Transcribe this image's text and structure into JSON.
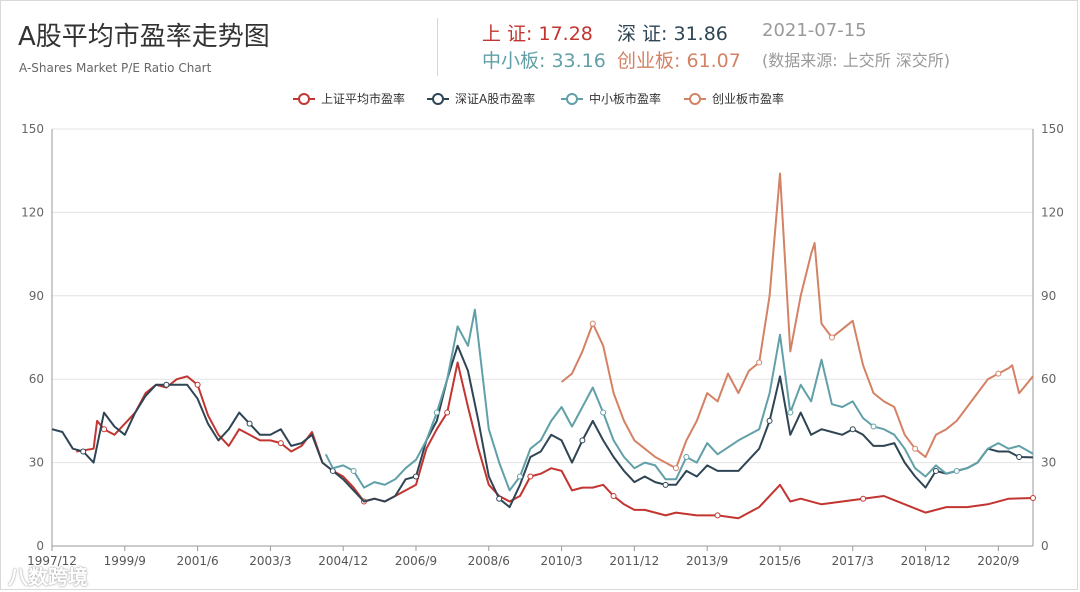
{
  "header": {
    "title": "A股平均市盈率走势图",
    "subtitle": "A-Shares Market P/E Ratio Chart",
    "stats": [
      {
        "label": "上 证",
        "value": "17.28",
        "color": "#c23531"
      },
      {
        "label": "深 证",
        "value": "31.86",
        "color": "#2f4554"
      },
      {
        "label": "中小板",
        "value": "33.16",
        "color": "#61a0a8"
      },
      {
        "label": "创业板",
        "value": "61.07",
        "color": "#d48265"
      }
    ],
    "date": "2021-07-15",
    "source": "(数据来源: 上交所 深交所)"
  },
  "watermark": "八数跨境",
  "chart_data": {
    "type": "line",
    "x_ticks": [
      "1997/12",
      "1999/9",
      "2001/6",
      "2003/3",
      "2004/12",
      "2006/9",
      "2008/6",
      "2010/3",
      "2011/12",
      "2013/9",
      "2015/6",
      "2017/3",
      "2018/12",
      "2020/9"
    ],
    "xlim": [
      "1997-12",
      "2021-07"
    ],
    "ylim": [
      0,
      150
    ],
    "y_ticks": [
      0,
      30,
      60,
      90,
      120,
      150
    ],
    "grid": true,
    "legend_position": "top-center",
    "series": [
      {
        "name": "上证平均市盈率",
        "color": "#c23531",
        "points": [
          [
            "1998-07",
            34
          ],
          [
            "1998-12",
            35
          ],
          [
            "1999-01",
            45
          ],
          [
            "1999-03",
            42
          ],
          [
            "1999-06",
            40
          ],
          [
            "1999-12",
            48
          ],
          [
            "2000-03",
            55
          ],
          [
            "2000-06",
            58
          ],
          [
            "2000-09",
            57
          ],
          [
            "2000-12",
            60
          ],
          [
            "2001-03",
            61
          ],
          [
            "2001-06",
            58
          ],
          [
            "2001-09",
            47
          ],
          [
            "2001-12",
            40
          ],
          [
            "2002-03",
            36
          ],
          [
            "2002-06",
            42
          ],
          [
            "2002-09",
            40
          ],
          [
            "2002-12",
            38
          ],
          [
            "2003-03",
            38
          ],
          [
            "2003-06",
            37
          ],
          [
            "2003-09",
            34
          ],
          [
            "2003-12",
            36
          ],
          [
            "2004-03",
            41
          ],
          [
            "2004-06",
            30
          ],
          [
            "2004-09",
            27
          ],
          [
            "2004-12",
            25
          ],
          [
            "2005-03",
            21
          ],
          [
            "2005-06",
            16
          ],
          [
            "2005-09",
            17
          ],
          [
            "2005-12",
            16
          ],
          [
            "2006-03",
            18
          ],
          [
            "2006-06",
            20
          ],
          [
            "2006-09",
            22
          ],
          [
            "2006-12",
            35
          ],
          [
            "2007-03",
            42
          ],
          [
            "2007-06",
            48
          ],
          [
            "2007-09",
            66
          ],
          [
            "2007-12",
            50
          ],
          [
            "2008-03",
            35
          ],
          [
            "2008-06",
            22
          ],
          [
            "2008-09",
            18
          ],
          [
            "2008-12",
            16
          ],
          [
            "2009-03",
            18
          ],
          [
            "2009-06",
            25
          ],
          [
            "2009-09",
            26
          ],
          [
            "2009-12",
            28
          ],
          [
            "2010-03",
            27
          ],
          [
            "2010-06",
            20
          ],
          [
            "2010-09",
            21
          ],
          [
            "2010-12",
            21
          ],
          [
            "2011-03",
            22
          ],
          [
            "2011-06",
            18
          ],
          [
            "2011-09",
            15
          ],
          [
            "2011-12",
            13
          ],
          [
            "2012-03",
            13
          ],
          [
            "2012-06",
            12
          ],
          [
            "2012-09",
            11
          ],
          [
            "2012-12",
            12
          ],
          [
            "2013-06",
            11
          ],
          [
            "2013-12",
            11
          ],
          [
            "2014-06",
            10
          ],
          [
            "2014-12",
            14
          ],
          [
            "2015-06",
            22
          ],
          [
            "2015-09",
            16
          ],
          [
            "2015-12",
            17
          ],
          [
            "2016-06",
            15
          ],
          [
            "2016-12",
            16
          ],
          [
            "2017-06",
            17
          ],
          [
            "2017-12",
            18
          ],
          [
            "2018-06",
            15
          ],
          [
            "2018-12",
            12
          ],
          [
            "2019-06",
            14
          ],
          [
            "2019-12",
            14
          ],
          [
            "2020-06",
            15
          ],
          [
            "2020-12",
            17
          ],
          [
            "2021-07",
            17.28
          ]
        ]
      },
      {
        "name": "深证A股市盈率",
        "color": "#2f4554",
        "points": [
          [
            "1997-12",
            42
          ],
          [
            "1998-03",
            41
          ],
          [
            "1998-06",
            35
          ],
          [
            "1998-09",
            34
          ],
          [
            "1998-12",
            30
          ],
          [
            "1999-03",
            48
          ],
          [
            "1999-06",
            43
          ],
          [
            "1999-09",
            40
          ],
          [
            "1999-12",
            48
          ],
          [
            "2000-03",
            54
          ],
          [
            "2000-06",
            58
          ],
          [
            "2000-09",
            58
          ],
          [
            "2000-12",
            58
          ],
          [
            "2001-03",
            58
          ],
          [
            "2001-06",
            53
          ],
          [
            "2001-09",
            44
          ],
          [
            "2001-12",
            38
          ],
          [
            "2002-03",
            42
          ],
          [
            "2002-06",
            48
          ],
          [
            "2002-09",
            44
          ],
          [
            "2002-12",
            40
          ],
          [
            "2003-03",
            40
          ],
          [
            "2003-06",
            42
          ],
          [
            "2003-09",
            36
          ],
          [
            "2003-12",
            37
          ],
          [
            "2004-03",
            40
          ],
          [
            "2004-06",
            30
          ],
          [
            "2004-09",
            27
          ],
          [
            "2004-12",
            24
          ],
          [
            "2005-03",
            20
          ],
          [
            "2005-06",
            16
          ],
          [
            "2005-09",
            17
          ],
          [
            "2005-12",
            16
          ],
          [
            "2006-03",
            18
          ],
          [
            "2006-06",
            24
          ],
          [
            "2006-09",
            25
          ],
          [
            "2006-12",
            38
          ],
          [
            "2007-03",
            45
          ],
          [
            "2007-06",
            60
          ],
          [
            "2007-09",
            72
          ],
          [
            "2007-12",
            63
          ],
          [
            "2008-03",
            45
          ],
          [
            "2008-06",
            25
          ],
          [
            "2008-09",
            17
          ],
          [
            "2008-12",
            14
          ],
          [
            "2009-03",
            22
          ],
          [
            "2009-06",
            32
          ],
          [
            "2009-09",
            34
          ],
          [
            "2009-12",
            40
          ],
          [
            "2010-03",
            38
          ],
          [
            "2010-06",
            30
          ],
          [
            "2010-09",
            38
          ],
          [
            "2010-12",
            45
          ],
          [
            "2011-03",
            38
          ],
          [
            "2011-06",
            32
          ],
          [
            "2011-09",
            27
          ],
          [
            "2011-12",
            23
          ],
          [
            "2012-03",
            25
          ],
          [
            "2012-06",
            23
          ],
          [
            "2012-09",
            22
          ],
          [
            "2012-12",
            22
          ],
          [
            "2013-03",
            27
          ],
          [
            "2013-06",
            25
          ],
          [
            "2013-09",
            29
          ],
          [
            "2013-12",
            27
          ],
          [
            "2014-06",
            27
          ],
          [
            "2014-12",
            35
          ],
          [
            "2015-03",
            45
          ],
          [
            "2015-06",
            61
          ],
          [
            "2015-09",
            40
          ],
          [
            "2015-12",
            48
          ],
          [
            "2016-03",
            40
          ],
          [
            "2016-06",
            42
          ],
          [
            "2016-09",
            41
          ],
          [
            "2016-12",
            40
          ],
          [
            "2017-03",
            42
          ],
          [
            "2017-06",
            40
          ],
          [
            "2017-09",
            36
          ],
          [
            "2017-12",
            36
          ],
          [
            "2018-03",
            37
          ],
          [
            "2018-06",
            30
          ],
          [
            "2018-09",
            25
          ],
          [
            "2018-12",
            21
          ],
          [
            "2019-03",
            27
          ],
          [
            "2019-06",
            26
          ],
          [
            "2019-09",
            27
          ],
          [
            "2019-12",
            28
          ],
          [
            "2020-03",
            30
          ],
          [
            "2020-06",
            35
          ],
          [
            "2020-09",
            34
          ],
          [
            "2020-12",
            34
          ],
          [
            "2021-03",
            32
          ],
          [
            "2021-07",
            31.86
          ]
        ]
      },
      {
        "name": "中小板市盈率",
        "color": "#61a0a8",
        "points": [
          [
            "2004-07",
            33
          ],
          [
            "2004-09",
            28
          ],
          [
            "2004-12",
            29
          ],
          [
            "2005-03",
            27
          ],
          [
            "2005-06",
            21
          ],
          [
            "2005-09",
            23
          ],
          [
            "2005-12",
            22
          ],
          [
            "2006-03",
            24
          ],
          [
            "2006-06",
            28
          ],
          [
            "2006-09",
            31
          ],
          [
            "2006-12",
            38
          ],
          [
            "2007-03",
            48
          ],
          [
            "2007-06",
            60
          ],
          [
            "2007-09",
            79
          ],
          [
            "2007-12",
            72
          ],
          [
            "2008-02",
            85
          ],
          [
            "2008-06",
            42
          ],
          [
            "2008-09",
            30
          ],
          [
            "2008-12",
            20
          ],
          [
            "2009-03",
            25
          ],
          [
            "2009-06",
            35
          ],
          [
            "2009-09",
            38
          ],
          [
            "2009-12",
            45
          ],
          [
            "2010-03",
            50
          ],
          [
            "2010-06",
            43
          ],
          [
            "2010-09",
            50
          ],
          [
            "2010-12",
            57
          ],
          [
            "2011-03",
            48
          ],
          [
            "2011-06",
            38
          ],
          [
            "2011-09",
            32
          ],
          [
            "2011-12",
            28
          ],
          [
            "2012-03",
            30
          ],
          [
            "2012-06",
            29
          ],
          [
            "2012-09",
            24
          ],
          [
            "2012-12",
            24
          ],
          [
            "2013-03",
            32
          ],
          [
            "2013-06",
            30
          ],
          [
            "2013-09",
            37
          ],
          [
            "2013-12",
            33
          ],
          [
            "2014-06",
            38
          ],
          [
            "2014-12",
            42
          ],
          [
            "2015-03",
            55
          ],
          [
            "2015-06",
            76
          ],
          [
            "2015-09",
            48
          ],
          [
            "2015-12",
            58
          ],
          [
            "2016-03",
            52
          ],
          [
            "2016-06",
            67
          ],
          [
            "2016-09",
            51
          ],
          [
            "2016-12",
            50
          ],
          [
            "2017-03",
            52
          ],
          [
            "2017-06",
            46
          ],
          [
            "2017-09",
            43
          ],
          [
            "2017-12",
            42
          ],
          [
            "2018-03",
            40
          ],
          [
            "2018-06",
            35
          ],
          [
            "2018-09",
            28
          ],
          [
            "2018-12",
            25
          ],
          [
            "2019-03",
            29
          ],
          [
            "2019-06",
            26
          ],
          [
            "2019-09",
            27
          ],
          [
            "2019-12",
            28
          ],
          [
            "2020-03",
            30
          ],
          [
            "2020-06",
            35
          ],
          [
            "2020-09",
            37
          ],
          [
            "2020-12",
            35
          ],
          [
            "2021-03",
            36
          ],
          [
            "2021-07",
            33.16
          ]
        ]
      },
      {
        "name": "创业板市盈率",
        "color": "#d48265",
        "points": [
          [
            "2010-03",
            59
          ],
          [
            "2010-06",
            62
          ],
          [
            "2010-09",
            70
          ],
          [
            "2010-12",
            80
          ],
          [
            "2011-03",
            72
          ],
          [
            "2011-06",
            55
          ],
          [
            "2011-09",
            45
          ],
          [
            "2011-12",
            38
          ],
          [
            "2012-03",
            35
          ],
          [
            "2012-06",
            32
          ],
          [
            "2012-09",
            30
          ],
          [
            "2012-12",
            28
          ],
          [
            "2013-03",
            38
          ],
          [
            "2013-06",
            45
          ],
          [
            "2013-09",
            55
          ],
          [
            "2013-12",
            52
          ],
          [
            "2014-03",
            62
          ],
          [
            "2014-06",
            55
          ],
          [
            "2014-09",
            63
          ],
          [
            "2014-12",
            66
          ],
          [
            "2015-03",
            90
          ],
          [
            "2015-06",
            134
          ],
          [
            "2015-09",
            70
          ],
          [
            "2015-12",
            90
          ],
          [
            "2016-03",
            105
          ],
          [
            "2016-04",
            109
          ],
          [
            "2016-06",
            80
          ],
          [
            "2016-09",
            75
          ],
          [
            "2016-12",
            78
          ],
          [
            "2017-03",
            81
          ],
          [
            "2017-06",
            65
          ],
          [
            "2017-09",
            55
          ],
          [
            "2017-12",
            52
          ],
          [
            "2018-03",
            50
          ],
          [
            "2018-06",
            40
          ],
          [
            "2018-09",
            35
          ],
          [
            "2018-12",
            32
          ],
          [
            "2019-03",
            40
          ],
          [
            "2019-06",
            42
          ],
          [
            "2019-09",
            45
          ],
          [
            "2019-12",
            50
          ],
          [
            "2020-03",
            55
          ],
          [
            "2020-06",
            60
          ],
          [
            "2020-09",
            62
          ],
          [
            "2020-12",
            64
          ],
          [
            "2021-01",
            65
          ],
          [
            "2021-03",
            55
          ],
          [
            "2021-05",
            58
          ],
          [
            "2021-07",
            61.07
          ]
        ]
      }
    ]
  }
}
